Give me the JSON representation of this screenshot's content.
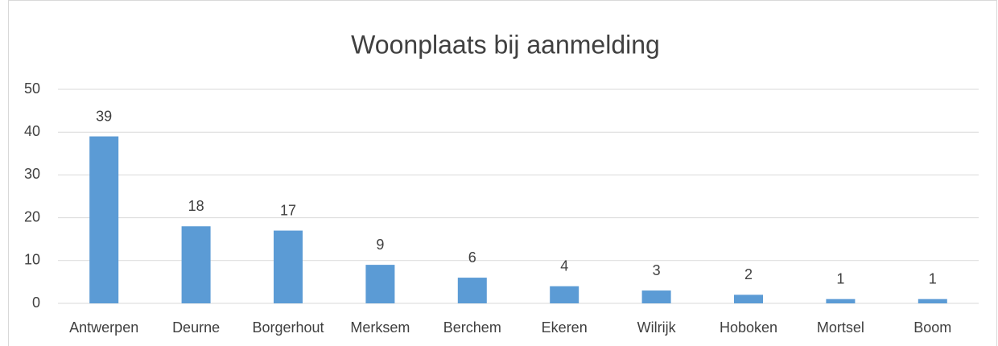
{
  "chart_data": {
    "type": "bar",
    "title": "Woonplaats bij aanmelding",
    "categories": [
      "Antwerpen",
      "Deurne",
      "Borgerhout",
      "Merksem",
      "Berchem",
      "Ekeren",
      "Wilrijk",
      "Hoboken",
      "Mortsel",
      "Boom"
    ],
    "values": [
      39,
      18,
      17,
      9,
      6,
      4,
      3,
      2,
      1,
      1
    ],
    "color": "#5b9bd5",
    "ylim": [
      0,
      50
    ],
    "yticks": [
      0,
      10,
      20,
      30,
      40,
      50
    ],
    "grid": true
  }
}
